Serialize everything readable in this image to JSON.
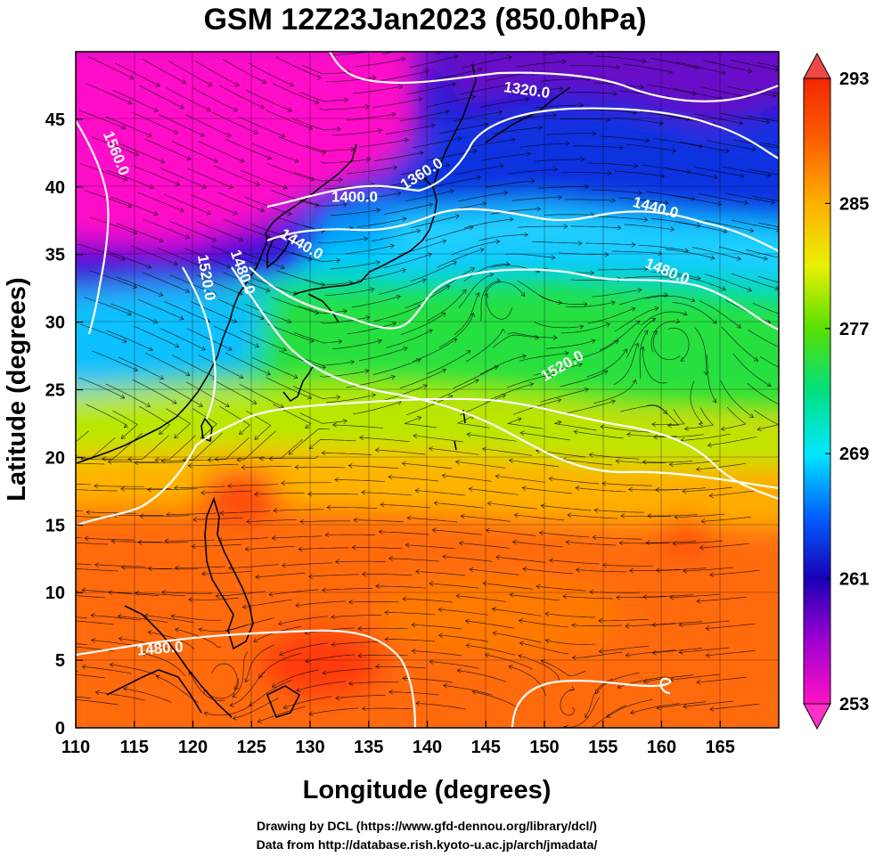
{
  "title": "GSM 12Z23Jan2023 (850.0hPa)",
  "xlabel": "Longitude (degrees)",
  "ylabel": "Latitude  (degrees)",
  "x_ticks": [
    "110",
    "115",
    "120",
    "125",
    "130",
    "135",
    "140",
    "145",
    "150",
    "155",
    "160",
    "165"
  ],
  "y_ticks": [
    "0",
    "5",
    "10",
    "15",
    "20",
    "25",
    "30",
    "35",
    "40",
    "45"
  ],
  "colorbar_ticks": [
    "293",
    "285",
    "277",
    "269",
    "261",
    "253"
  ],
  "contour_labels": [
    {
      "text": "1320.0",
      "lon": 148.5,
      "lat": 47.2,
      "rot": 8
    },
    {
      "text": "1360.0",
      "lon": 139.5,
      "lat": 41.0,
      "rot": -32
    },
    {
      "text": "1400.0",
      "lon": 133.8,
      "lat": 39.3,
      "rot": 0
    },
    {
      "text": "1440.0",
      "lon": 129.3,
      "lat": 35.8,
      "rot": 30
    },
    {
      "text": "1440.0",
      "lon": 159.5,
      "lat": 38.5,
      "rot": 15
    },
    {
      "text": "1480.0",
      "lon": 160.5,
      "lat": 33.8,
      "rot": 22
    },
    {
      "text": "1520.0",
      "lon": 151.5,
      "lat": 26.8,
      "rot": -30
    },
    {
      "text": "1560.0",
      "lon": 113.5,
      "lat": 42.5,
      "rot": 68
    },
    {
      "text": "1520.0",
      "lon": 121.2,
      "lat": 33.3,
      "rot": 80
    },
    {
      "text": "1480.0",
      "lon": 124.3,
      "lat": 33.7,
      "rot": 70
    },
    {
      "text": "1480.0",
      "lon": 117.2,
      "lat": 5.9,
      "rot": -5
    }
  ],
  "credits": [
    "Drawing by DCL (https://www.gfd-dennou.org/library/dcl/)",
    "Data from http://database.rish.kyoto-u.ac.jp/arch/jmadata/"
  ],
  "map_data": {
    "projection": "equirectangular",
    "lon_range": [
      110,
      170
    ],
    "lat_range": [
      0,
      50
    ],
    "field": "temperature (K)",
    "colorbar_range": [
      253,
      293
    ],
    "colorbar_colors": [
      "#ff12c4",
      "#a000d0",
      "#1a00b8",
      "#0060ff",
      "#00e8ff",
      "#00e080",
      "#58e000",
      "#e8f000",
      "#ffb000",
      "#ff6000",
      "#f02800"
    ],
    "contour_field": "geopotential height (m)",
    "contour_levels": [
      1320,
      1360,
      1400,
      1440,
      1480,
      1520,
      1560
    ],
    "overlay": "wind streamlines"
  }
}
